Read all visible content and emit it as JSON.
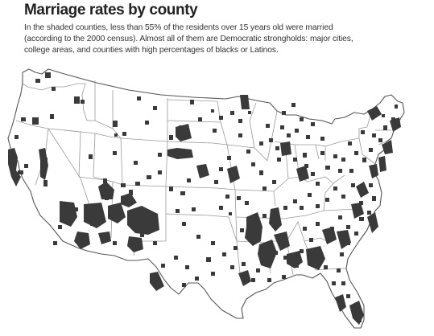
{
  "title": "Marriage rates by county",
  "description_lines": [
    "In the shaded counties, less than 55% of the residents over 15 years old were married",
    "(according to the 2000 census). Almost all of them are Democratic strongholds: major cities,",
    "college areas, and counties with high percentages of blacks or Latinos."
  ],
  "colors": {
    "shaded": "#3a3a3a",
    "land": "#ffffff",
    "border": "#9a9a9a",
    "outline": "#555555"
  }
}
